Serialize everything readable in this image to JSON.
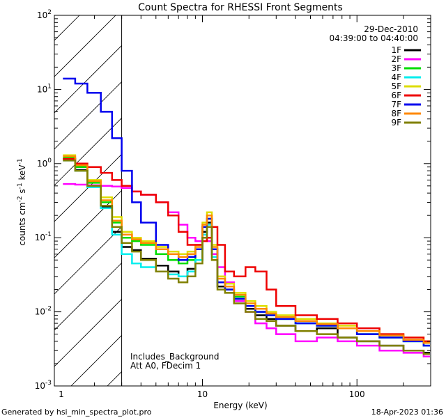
{
  "chart_data": {
    "type": "line",
    "title": "Count Spectra for RHESSI Front Segments",
    "xlabel": "Energy (keV)",
    "ylabel": "counts cm",
    "ylabel_sup1": "-2",
    "ylabel_mid": " s",
    "ylabel_sup2": "-1",
    "ylabel_end": " keV",
    "ylabel_sup3": "-1",
    "x_scale": "log",
    "y_scale": "log",
    "xlim": [
      1.1,
      300
    ],
    "ylim": [
      0.001,
      100
    ],
    "x_ticks": [
      {
        "value": 1,
        "label": "1"
      },
      {
        "value": 10,
        "label": "10"
      },
      {
        "value": 100,
        "label": "100"
      }
    ],
    "y_ticks": [
      {
        "value": 0.001,
        "base": "10",
        "exp": "-3"
      },
      {
        "value": 0.01,
        "base": "10",
        "exp": "-2"
      },
      {
        "value": 0.1,
        "base": "10",
        "exp": "-1"
      },
      {
        "value": 1,
        "base": "10",
        "exp": "0"
      },
      {
        "value": 10,
        "base": "10",
        "exp": "1"
      },
      {
        "value": 100,
        "base": "10",
        "exp": "2"
      }
    ],
    "shaded_region": {
      "x_from": 1.1,
      "x_to": 3.0,
      "pattern": "hatched"
    },
    "date": "29-Dec-2010",
    "time_range": "04:39:00 to 04:40:00",
    "annotations": [
      "Includes_Background",
      "Att A0, FDecim 1"
    ],
    "legend_position": "top-right",
    "series": [
      {
        "name": "1F",
        "color": "#000000",
        "x": [
          1.25,
          1.5,
          1.8,
          2.2,
          2.6,
          3,
          3.5,
          4,
          5,
          6,
          7,
          8,
          9,
          10,
          10.7,
          11.5,
          12.5,
          14,
          16,
          19,
          22,
          26,
          30,
          40,
          55,
          75,
          100,
          140,
          200,
          270
        ],
        "y": [
          1.15,
          0.82,
          0.5,
          0.26,
          0.12,
          0.075,
          0.068,
          0.052,
          0.042,
          0.035,
          0.03,
          0.038,
          0.05,
          0.12,
          0.16,
          0.06,
          0.022,
          0.02,
          0.014,
          0.011,
          0.009,
          0.008,
          0.0065,
          0.0055,
          0.006,
          0.0045,
          0.004,
          0.0035,
          0.003,
          0.0028
        ]
      },
      {
        "name": "2F",
        "color": "#ff00ff",
        "x": [
          1.25,
          1.5,
          1.8,
          2.2,
          2.6,
          3,
          3.5,
          4,
          5,
          6,
          7,
          8,
          9,
          10,
          10.7,
          11.5,
          12.5,
          14,
          16,
          19,
          22,
          26,
          30,
          40,
          55,
          75,
          100,
          140,
          200,
          270
        ],
        "y": [
          0.53,
          0.52,
          0.51,
          0.5,
          0.49,
          0.47,
          0.42,
          0.38,
          0.3,
          0.22,
          0.15,
          0.1,
          0.09,
          0.11,
          0.09,
          0.06,
          0.04,
          0.025,
          0.014,
          0.01,
          0.007,
          0.006,
          0.005,
          0.004,
          0.0045,
          0.004,
          0.0035,
          0.003,
          0.0028,
          0.0025
        ]
      },
      {
        "name": "3F",
        "color": "#00dd00",
        "x": [
          1.25,
          1.5,
          1.8,
          2.2,
          2.6,
          3,
          3.5,
          4,
          5,
          6,
          7,
          8,
          9,
          10,
          10.7,
          11.5,
          12.5,
          14,
          16,
          19,
          22,
          26,
          30,
          40,
          55,
          75,
          100,
          140,
          200,
          270
        ],
        "y": [
          1.2,
          0.9,
          0.55,
          0.3,
          0.16,
          0.1,
          0.09,
          0.08,
          0.06,
          0.05,
          0.045,
          0.05,
          0.07,
          0.14,
          0.18,
          0.07,
          0.025,
          0.022,
          0.016,
          0.012,
          0.01,
          0.009,
          0.008,
          0.007,
          0.0065,
          0.006,
          0.005,
          0.0045,
          0.004,
          0.0035
        ]
      },
      {
        "name": "4F",
        "color": "#00eeee",
        "x": [
          1.25,
          1.5,
          1.8,
          2.2,
          2.6,
          3,
          3.5,
          4,
          5,
          6,
          7,
          8,
          9,
          10,
          10.7,
          11.5,
          12.5,
          14,
          16,
          19,
          22,
          26,
          30,
          40,
          55,
          75,
          100,
          140,
          200,
          270
        ],
        "y": [
          1.1,
          0.8,
          0.48,
          0.25,
          0.11,
          0.06,
          0.045,
          0.04,
          0.035,
          0.032,
          0.03,
          0.035,
          0.05,
          0.11,
          0.15,
          0.055,
          0.025,
          0.02,
          0.015,
          0.012,
          0.01,
          0.009,
          0.008,
          0.007,
          0.0065,
          0.006,
          0.005,
          0.0045,
          0.004,
          0.0035
        ]
      },
      {
        "name": "5F",
        "color": "#dddd00",
        "x": [
          1.25,
          1.5,
          1.8,
          2.2,
          2.6,
          3,
          3.5,
          4,
          5,
          6,
          7,
          8,
          9,
          10,
          10.7,
          11.5,
          12.5,
          14,
          16,
          19,
          22,
          26,
          30,
          40,
          55,
          75,
          100,
          140,
          200,
          270
        ],
        "y": [
          1.3,
          1.0,
          0.6,
          0.35,
          0.19,
          0.12,
          0.1,
          0.09,
          0.075,
          0.065,
          0.06,
          0.065,
          0.08,
          0.16,
          0.22,
          0.08,
          0.03,
          0.024,
          0.018,
          0.014,
          0.012,
          0.01,
          0.009,
          0.008,
          0.007,
          0.0065,
          0.006,
          0.005,
          0.0045,
          0.004
        ]
      },
      {
        "name": "6F",
        "color": "#ee0000",
        "x": [
          1.25,
          1.5,
          1.8,
          2.2,
          2.6,
          3,
          3.5,
          4,
          5,
          6,
          7,
          8,
          9,
          10,
          10.7,
          11.5,
          12.5,
          14,
          16,
          19,
          22,
          26,
          30,
          40,
          55,
          75,
          100,
          140,
          200,
          270
        ],
        "y": [
          1.15,
          1.0,
          0.9,
          0.75,
          0.6,
          0.5,
          0.42,
          0.38,
          0.3,
          0.2,
          0.12,
          0.08,
          0.08,
          0.09,
          0.1,
          0.14,
          0.08,
          0.035,
          0.03,
          0.04,
          0.035,
          0.02,
          0.012,
          0.009,
          0.008,
          0.007,
          0.006,
          0.005,
          0.0045,
          0.004
        ]
      },
      {
        "name": "7F",
        "color": "#0000ee",
        "x": [
          1.25,
          1.5,
          1.8,
          2.2,
          2.6,
          3,
          3.5,
          4,
          5,
          6,
          7,
          8,
          9,
          10,
          10.7,
          11.5,
          12.5,
          14,
          16,
          19,
          22,
          26,
          30,
          40,
          55,
          75,
          100,
          140,
          200,
          270
        ],
        "y": [
          14,
          12,
          9,
          5,
          2.2,
          0.8,
          0.3,
          0.16,
          0.08,
          0.06,
          0.05,
          0.055,
          0.07,
          0.14,
          0.18,
          0.07,
          0.025,
          0.02,
          0.015,
          0.012,
          0.01,
          0.009,
          0.008,
          0.007,
          0.0065,
          0.006,
          0.005,
          0.0045,
          0.004,
          0.0035
        ]
      },
      {
        "name": "8F",
        "color": "#ff8800",
        "x": [
          1.25,
          1.5,
          1.8,
          2.2,
          2.6,
          3,
          3.5,
          4,
          5,
          6,
          7,
          8,
          9,
          10,
          10.7,
          11.5,
          12.5,
          14,
          16,
          19,
          22,
          26,
          30,
          40,
          55,
          75,
          100,
          140,
          200,
          270
        ],
        "y": [
          1.25,
          0.95,
          0.58,
          0.32,
          0.17,
          0.11,
          0.095,
          0.085,
          0.07,
          0.06,
          0.055,
          0.06,
          0.075,
          0.15,
          0.2,
          0.075,
          0.028,
          0.022,
          0.017,
          0.013,
          0.011,
          0.0095,
          0.0085,
          0.0075,
          0.0068,
          0.006,
          0.0055,
          0.0048,
          0.0042,
          0.0038
        ]
      },
      {
        "name": "9F",
        "color": "#808000",
        "x": [
          1.25,
          1.5,
          1.8,
          2.2,
          2.6,
          3,
          3.5,
          4,
          5,
          6,
          7,
          8,
          9,
          10,
          10.7,
          11.5,
          12.5,
          14,
          16,
          19,
          22,
          26,
          30,
          40,
          55,
          75,
          100,
          140,
          200,
          270
        ],
        "y": [
          1.1,
          0.8,
          0.5,
          0.27,
          0.14,
          0.085,
          0.065,
          0.05,
          0.035,
          0.028,
          0.025,
          0.03,
          0.045,
          0.1,
          0.14,
          0.05,
          0.02,
          0.018,
          0.013,
          0.01,
          0.008,
          0.0075,
          0.0065,
          0.0055,
          0.005,
          0.0045,
          0.004,
          0.0035,
          0.003,
          0.0027
        ]
      }
    ]
  },
  "footer": {
    "generated_by": "Generated by hsi_min_spectra_plot.pro",
    "timestamp": "18-Apr-2023 01:36"
  }
}
